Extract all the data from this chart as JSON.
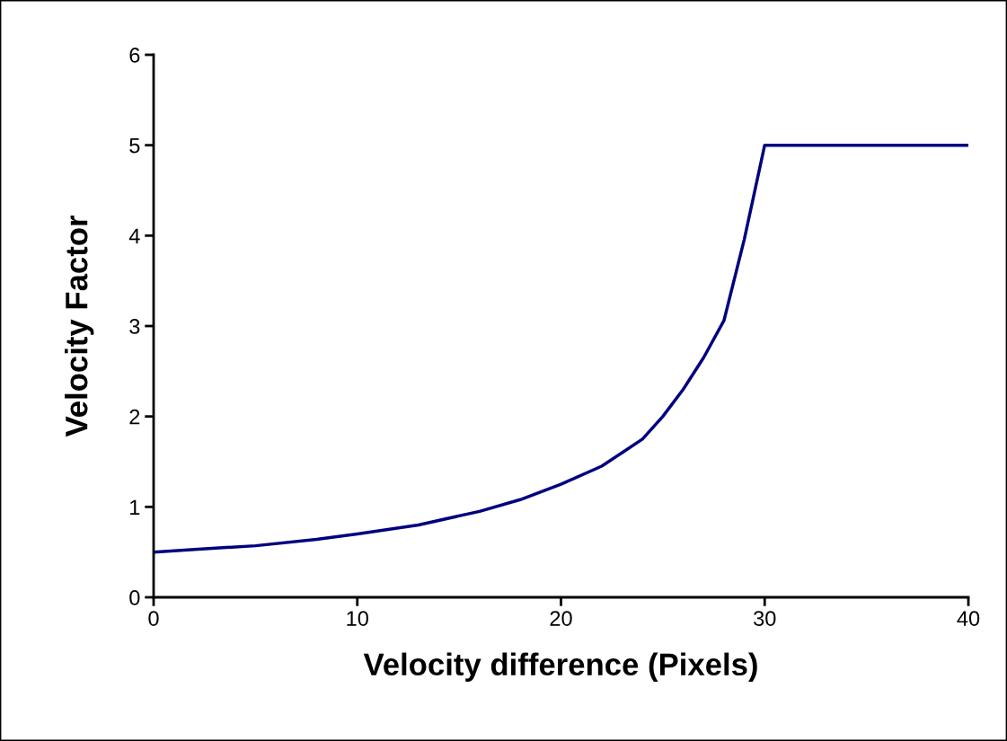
{
  "chart_data": {
    "type": "line",
    "xlabel": "Velocity difference (Pixels)",
    "ylabel": "Velocity Factor",
    "x": [
      0,
      2,
      5,
      8,
      10,
      13,
      16,
      18,
      20,
      22,
      23,
      24,
      25,
      26,
      27,
      28,
      29,
      30,
      40
    ],
    "series": [
      {
        "color": "#000080",
        "values": [
          0.5,
          0.53,
          0.57,
          0.64,
          0.7,
          0.8,
          0.95,
          1.08,
          1.25,
          1.45,
          1.6,
          1.75,
          2.0,
          2.3,
          2.65,
          3.06,
          3.96,
          5.0,
          5.0
        ]
      }
    ],
    "xlim": [
      0,
      40
    ],
    "xticks": [
      0,
      10,
      20,
      30,
      40
    ],
    "ylim": [
      0,
      6
    ],
    "yticks": [
      0,
      1,
      2,
      3,
      4,
      5,
      6
    ],
    "grid": false,
    "marker": "none",
    "line_style": "solid"
  }
}
